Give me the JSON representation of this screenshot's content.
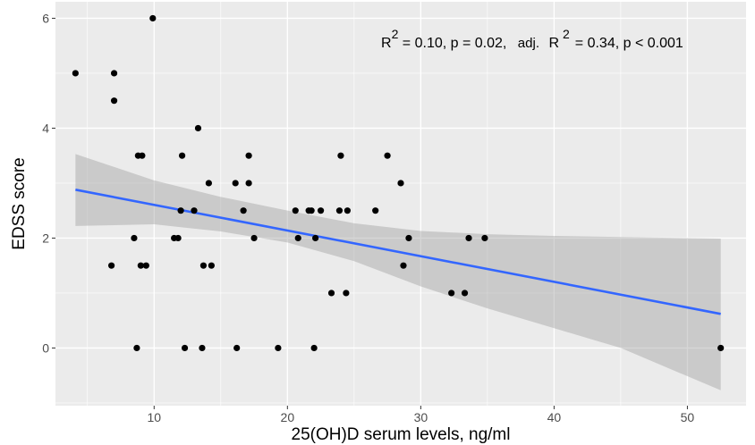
{
  "chart_data": {
    "type": "scatter",
    "xlabel": "25(OH)D serum levels, ng/ml",
    "ylabel": "EDSS  score",
    "xlim": [
      2.6,
      54.4
    ],
    "ylim": [
      -1.05,
      6.3
    ],
    "x_ticks": [
      10,
      20,
      30,
      40,
      50
    ],
    "y_ticks": [
      0,
      2,
      4,
      6
    ],
    "grid": true,
    "legend": "none",
    "colors": {
      "panel": "#ebebeb",
      "grid_major": "#ffffff",
      "points": "#000000",
      "trend_line": "#3366ff",
      "confidence_band": "#999999"
    },
    "annotation": {
      "r2_text": "R",
      "r2_sup": "2",
      "r2_rest": " = 0.10, p = 0.02,",
      "adj_text": "adj.",
      "adjr_text": "R",
      "adjr_sup": "2",
      "adjr_rest": "=  0.34,  p < 0.001"
    },
    "points": [
      {
        "x": 4.1,
        "y": 5
      },
      {
        "x": 6.8,
        "y": 1.5
      },
      {
        "x": 7.0,
        "y": 5
      },
      {
        "x": 7.0,
        "y": 4.5
      },
      {
        "x": 8.5,
        "y": 2
      },
      {
        "x": 8.7,
        "y": 0
      },
      {
        "x": 8.8,
        "y": 3.5
      },
      {
        "x": 9.0,
        "y": 1.5
      },
      {
        "x": 9.1,
        "y": 3.5
      },
      {
        "x": 9.4,
        "y": 1.5
      },
      {
        "x": 9.9,
        "y": 6
      },
      {
        "x": 11.5,
        "y": 2
      },
      {
        "x": 11.8,
        "y": 2
      },
      {
        "x": 12.0,
        "y": 2.5
      },
      {
        "x": 12.1,
        "y": 3.5
      },
      {
        "x": 12.3,
        "y": 0
      },
      {
        "x": 13.0,
        "y": 2.5
      },
      {
        "x": 13.3,
        "y": 4
      },
      {
        "x": 13.6,
        "y": 0
      },
      {
        "x": 13.7,
        "y": 1.5
      },
      {
        "x": 14.1,
        "y": 3
      },
      {
        "x": 14.3,
        "y": 1.5
      },
      {
        "x": 16.1,
        "y": 3
      },
      {
        "x": 16.2,
        "y": 0
      },
      {
        "x": 16.7,
        "y": 2.5
      },
      {
        "x": 17.1,
        "y": 3.5
      },
      {
        "x": 17.1,
        "y": 3
      },
      {
        "x": 17.5,
        "y": 2
      },
      {
        "x": 19.3,
        "y": 0
      },
      {
        "x": 20.6,
        "y": 2.5
      },
      {
        "x": 20.8,
        "y": 2
      },
      {
        "x": 21.6,
        "y": 2.5
      },
      {
        "x": 21.8,
        "y": 2.5
      },
      {
        "x": 22.0,
        "y": 0
      },
      {
        "x": 22.1,
        "y": 2
      },
      {
        "x": 22.5,
        "y": 2.5
      },
      {
        "x": 23.3,
        "y": 1
      },
      {
        "x": 23.9,
        "y": 2.5
      },
      {
        "x": 24.0,
        "y": 3.5
      },
      {
        "x": 24.4,
        "y": 1
      },
      {
        "x": 24.5,
        "y": 2.5
      },
      {
        "x": 26.6,
        "y": 2.5
      },
      {
        "x": 27.5,
        "y": 3.5
      },
      {
        "x": 28.5,
        "y": 3
      },
      {
        "x": 28.7,
        "y": 1.5
      },
      {
        "x": 29.1,
        "y": 2
      },
      {
        "x": 32.3,
        "y": 1
      },
      {
        "x": 33.3,
        "y": 1
      },
      {
        "x": 33.6,
        "y": 2
      },
      {
        "x": 34.8,
        "y": 2
      },
      {
        "x": 52.5,
        "y": 0
      }
    ],
    "trend": {
      "x": [
        4.1,
        52.5
      ],
      "y": [
        2.88,
        0.62
      ],
      "band_x": [
        4.1,
        10,
        15,
        20,
        25,
        30,
        35,
        40,
        45,
        52.5
      ],
      "band_lower": [
        2.22,
        2.25,
        2.12,
        1.92,
        1.58,
        1.12,
        0.72,
        0.36,
        0.0,
        -0.77
      ],
      "band_upper": [
        3.53,
        3.05,
        2.75,
        2.5,
        2.27,
        2.13,
        2.07,
        2.04,
        2.02,
        1.99
      ]
    }
  }
}
